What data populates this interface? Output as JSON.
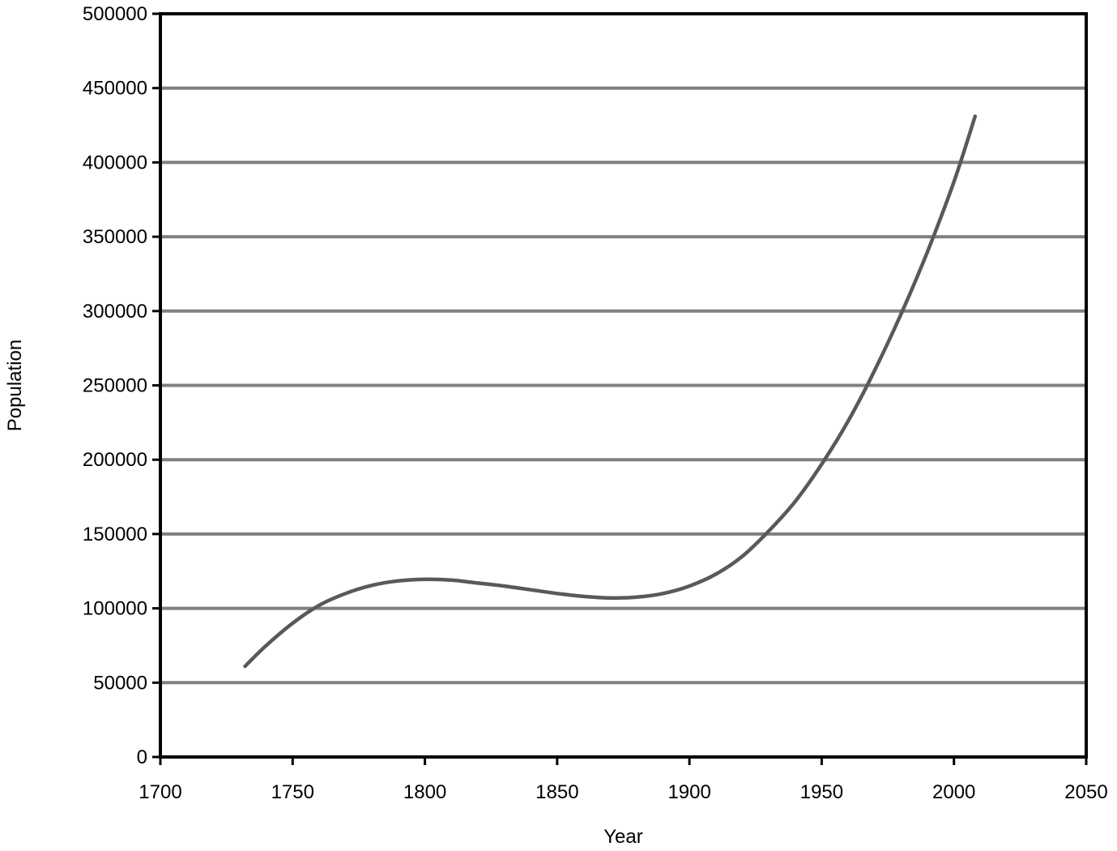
{
  "chart_data": {
    "type": "line",
    "title": "",
    "xlabel": "Year",
    "ylabel": "Population",
    "xlim": [
      1700,
      2050
    ],
    "ylim": [
      0,
      500000
    ],
    "x_ticks": [
      1700,
      1750,
      1800,
      1850,
      1900,
      1950,
      2000,
      2050
    ],
    "y_ticks": [
      0,
      50000,
      100000,
      150000,
      200000,
      250000,
      300000,
      350000,
      400000,
      450000,
      500000
    ],
    "grid": "horizontal",
    "legend": "none",
    "series": [
      {
        "color": "#595959",
        "x": [
          1732,
          1740,
          1750,
          1760,
          1770,
          1780,
          1790,
          1800,
          1810,
          1820,
          1830,
          1840,
          1850,
          1860,
          1870,
          1880,
          1890,
          1900,
          1910,
          1920,
          1930,
          1940,
          1950,
          1960,
          1970,
          1980,
          1990,
          2000,
          2008
        ],
        "y": [
          61000,
          75000,
          90000,
          102000,
          110000,
          115500,
          118500,
          119500,
          119000,
          117000,
          115000,
          112500,
          110000,
          108000,
          107000,
          107500,
          110000,
          115000,
          123000,
          135000,
          152000,
          172000,
          197000,
          226000,
          260000,
          298000,
          340000,
          387000,
          431000
        ]
      }
    ]
  },
  "colors": {
    "gridline": "#808080",
    "axis": "#000000",
    "series": "#595959"
  }
}
